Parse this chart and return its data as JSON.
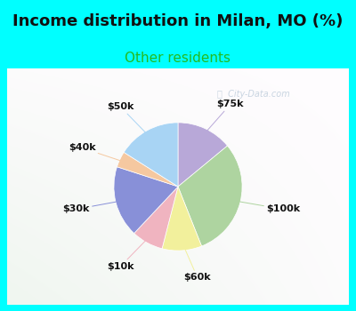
{
  "title": "Income distribution in Milan, MO (%)",
  "subtitle": "Other residents",
  "labels": [
    "$75k",
    "$100k",
    "$60k",
    "$10k",
    "$30k",
    "$40k",
    "$50k"
  ],
  "sizes": [
    14,
    30,
    10,
    8,
    18,
    4,
    16
  ],
  "colors": [
    "#b8a8d8",
    "#aed4a0",
    "#f2f09c",
    "#f0b4c0",
    "#8890d8",
    "#f5c8a0",
    "#a8d4f4"
  ],
  "startangle": 90,
  "title_fontsize": 13,
  "subtitle_fontsize": 11,
  "subtitle_color": "#22bb22",
  "bg_cyan": "#00ffff",
  "label_fontsize": 8,
  "watermark": "City-Data.com"
}
